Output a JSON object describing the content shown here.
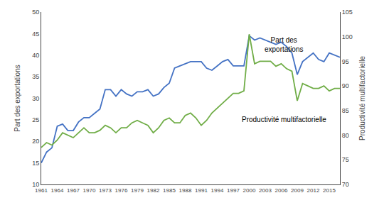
{
  "chart_data": {
    "type": "line",
    "x": [
      1961,
      1962,
      1963,
      1964,
      1965,
      1966,
      1967,
      1968,
      1969,
      1970,
      1971,
      1972,
      1973,
      1974,
      1975,
      1976,
      1977,
      1978,
      1979,
      1980,
      1981,
      1982,
      1983,
      1984,
      1985,
      1986,
      1987,
      1988,
      1989,
      1990,
      1991,
      1992,
      1993,
      1994,
      1995,
      1996,
      1997,
      1998,
      1999,
      2000,
      2001,
      2002,
      2003,
      2004,
      2005,
      2006,
      2007,
      2008,
      2009,
      2010,
      2011,
      2012,
      2013,
      2014,
      2015,
      2016,
      2017
    ],
    "series": [
      {
        "name": "Part des exportations",
        "color": "#4472C4",
        "values": [
          15.0,
          17.5,
          18.5,
          23.5,
          24.0,
          22.5,
          22.5,
          24.5,
          25.5,
          25.5,
          26.5,
          27.5,
          32.0,
          32.0,
          30.5,
          32.0,
          31.0,
          30.5,
          31.5,
          31.5,
          32.0,
          30.5,
          31.0,
          32.5,
          33.5,
          37.0,
          37.5,
          38.0,
          38.5,
          38.5,
          38.5,
          37.0,
          36.5,
          37.5,
          38.5,
          39.0,
          37.5,
          37.5,
          37.5,
          44.5,
          43.5,
          44.0,
          43.5,
          43.0,
          42.5,
          43.0,
          42.0,
          40.5,
          35.5,
          38.5,
          39.5,
          40.5,
          39.0,
          38.5,
          40.5,
          40.0,
          39.5
        ]
      },
      {
        "name": "Productivité multifactorielle",
        "color": "#70AD47",
        "axis": "y2",
        "values": [
          77.5,
          78.5,
          78.0,
          79.0,
          80.5,
          80.0,
          79.5,
          80.5,
          81.5,
          80.5,
          80.5,
          81.0,
          82.0,
          81.5,
          80.5,
          81.5,
          81.5,
          82.5,
          83.0,
          82.5,
          82.0,
          80.5,
          81.5,
          83.0,
          83.5,
          82.5,
          82.5,
          84.0,
          84.5,
          83.5,
          82.0,
          83.0,
          84.5,
          85.5,
          86.5,
          87.5,
          88.5,
          88.5,
          89.0,
          100.5,
          94.5,
          95.0,
          95.0,
          95.0,
          94.0,
          94.5,
          93.5,
          93.0,
          87.0,
          90.5,
          90.0,
          89.5,
          89.5,
          90.0,
          89.0,
          89.5,
          89.5
        ]
      }
    ],
    "ylabel": "Part des exportations",
    "y2label": "Productivité multifactorielle",
    "xlim": [
      1961,
      2017
    ],
    "xticks": [
      1961,
      1964,
      1967,
      1970,
      1973,
      1976,
      1979,
      1982,
      1985,
      1988,
      1991,
      1994,
      1997,
      2000,
      2003,
      2006,
      2009,
      2012,
      2015
    ],
    "ylim": [
      10,
      50
    ],
    "yticks": [
      10,
      15,
      20,
      25,
      30,
      35,
      40,
      45,
      50
    ],
    "y2lim": [
      70,
      105
    ],
    "y2ticks": [
      70,
      75,
      80,
      85,
      90,
      95,
      100,
      105
    ],
    "grid": false,
    "annotations": [
      {
        "text": "Part des\nexportations",
        "x": 2006.5,
        "y": 42.5
      },
      {
        "text": "Productivité multifactorielle",
        "x": 2006.5,
        "y": 25.0
      }
    ]
  }
}
